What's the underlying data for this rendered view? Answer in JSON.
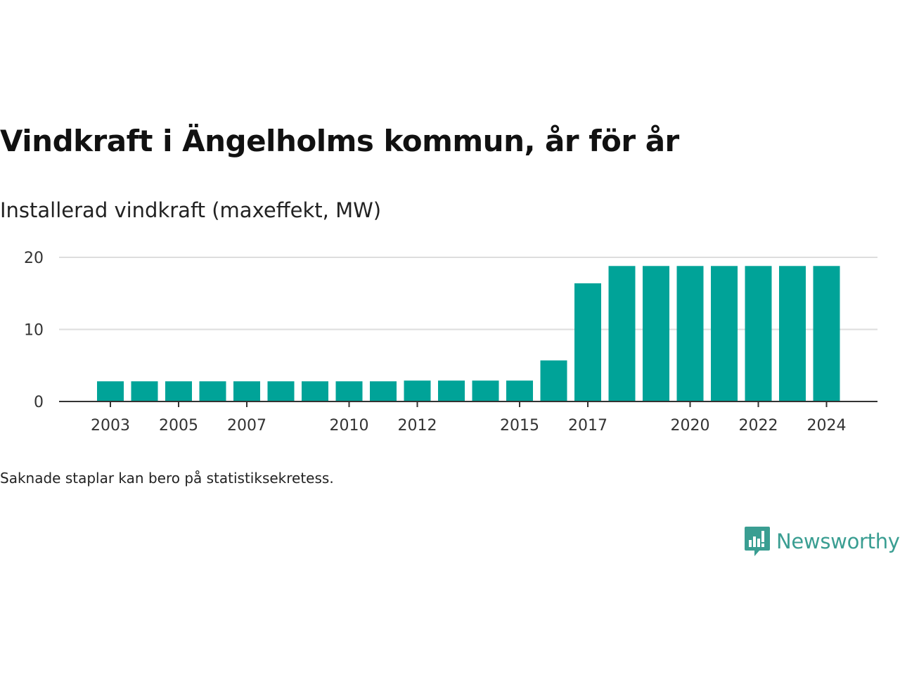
{
  "title": "Vindkraft i Ängelholms kommun, år för år",
  "subtitle": "Installerad vindkraft (maxeffekt, MW)",
  "footnote": "Saknade staplar kan bero på statistiksekretess.",
  "brand": {
    "name": "Newsworthy",
    "logo_icon": "bar-chart-speech-bubble-icon"
  },
  "colors": {
    "bar": "#00a398",
    "grid": "#dddddd",
    "axis": "#333333",
    "brand": "#3a9e92"
  },
  "chart_data": {
    "type": "bar",
    "categories": [
      "2003",
      "2004",
      "2005",
      "2006",
      "2007",
      "2008",
      "2009",
      "2010",
      "2011",
      "2012",
      "2013",
      "2014",
      "2015",
      "2016",
      "2017",
      "2018",
      "2019",
      "2020",
      "2021",
      "2022",
      "2023",
      "2024"
    ],
    "values": [
      2.8,
      2.8,
      2.8,
      2.8,
      2.8,
      2.8,
      2.8,
      2.8,
      2.8,
      2.9,
      2.9,
      2.9,
      2.9,
      5.7,
      16.4,
      18.8,
      18.8,
      18.8,
      18.8,
      18.8,
      18.8,
      18.8
    ],
    "x_tick_labels": [
      "2003",
      "2005",
      "2007",
      "2010",
      "2012",
      "2015",
      "2017",
      "2020",
      "2022",
      "2024"
    ],
    "y_ticks": [
      0,
      10,
      20
    ],
    "ylim": [
      0,
      20
    ],
    "grid": true,
    "xlabel": "",
    "ylabel": ""
  }
}
